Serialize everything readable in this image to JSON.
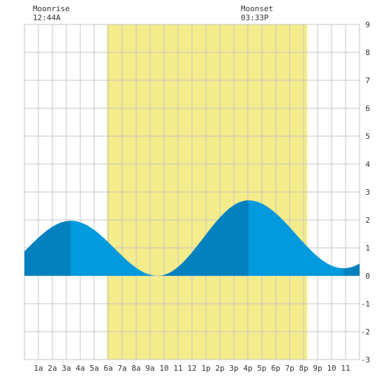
{
  "header": {
    "moonrise_label": "Moonrise",
    "moonrise_time": "12:44A",
    "moonset_label": "Moonset",
    "moonset_time": "03:33P"
  },
  "chart_data": {
    "type": "area",
    "title": "",
    "xlabel": "",
    "ylabel": "",
    "xlim": [
      0,
      24
    ],
    "ylim": [
      -3,
      9
    ],
    "grid": true,
    "y_ticks": [
      -3,
      -2,
      -1,
      0,
      1,
      2,
      3,
      4,
      5,
      6,
      7,
      8,
      9
    ],
    "x_ticks": [
      {
        "x": 1,
        "label": "1a"
      },
      {
        "x": 2,
        "label": "2a"
      },
      {
        "x": 3,
        "label": "3a"
      },
      {
        "x": 4,
        "label": "4a"
      },
      {
        "x": 5,
        "label": "5a"
      },
      {
        "x": 6,
        "label": "6a"
      },
      {
        "x": 7,
        "label": "7a"
      },
      {
        "x": 8,
        "label": "8a"
      },
      {
        "x": 9,
        "label": "9a"
      },
      {
        "x": 10,
        "label": "10"
      },
      {
        "x": 11,
        "label": "11"
      },
      {
        "x": 12,
        "label": "12"
      },
      {
        "x": 13,
        "label": "1p"
      },
      {
        "x": 14,
        "label": "2p"
      },
      {
        "x": 15,
        "label": "3p"
      },
      {
        "x": 16,
        "label": "4p"
      },
      {
        "x": 17,
        "label": "5p"
      },
      {
        "x": 18,
        "label": "6p"
      },
      {
        "x": 19,
        "label": "7p"
      },
      {
        "x": 20,
        "label": "8p"
      },
      {
        "x": 21,
        "label": "9p"
      },
      {
        "x": 22,
        "label": "10"
      },
      {
        "x": 23,
        "label": "11"
      }
    ],
    "daylight": {
      "start": 5.9,
      "end": 20.25
    },
    "extremes": [
      {
        "x": 3.33,
        "y": 1.97,
        "kind": "high"
      },
      {
        "x": 9.55,
        "y": 0.0,
        "kind": "low"
      },
      {
        "x": 16.05,
        "y": 2.7,
        "kind": "high"
      },
      {
        "x": 22.85,
        "y": 0.27,
        "kind": "low"
      }
    ],
    "colors": {
      "daylight": "#f5ec8c",
      "rising": "#0381bf",
      "falling": "#0299dd",
      "grid": "#c4c4c4",
      "text": "#333333"
    }
  }
}
